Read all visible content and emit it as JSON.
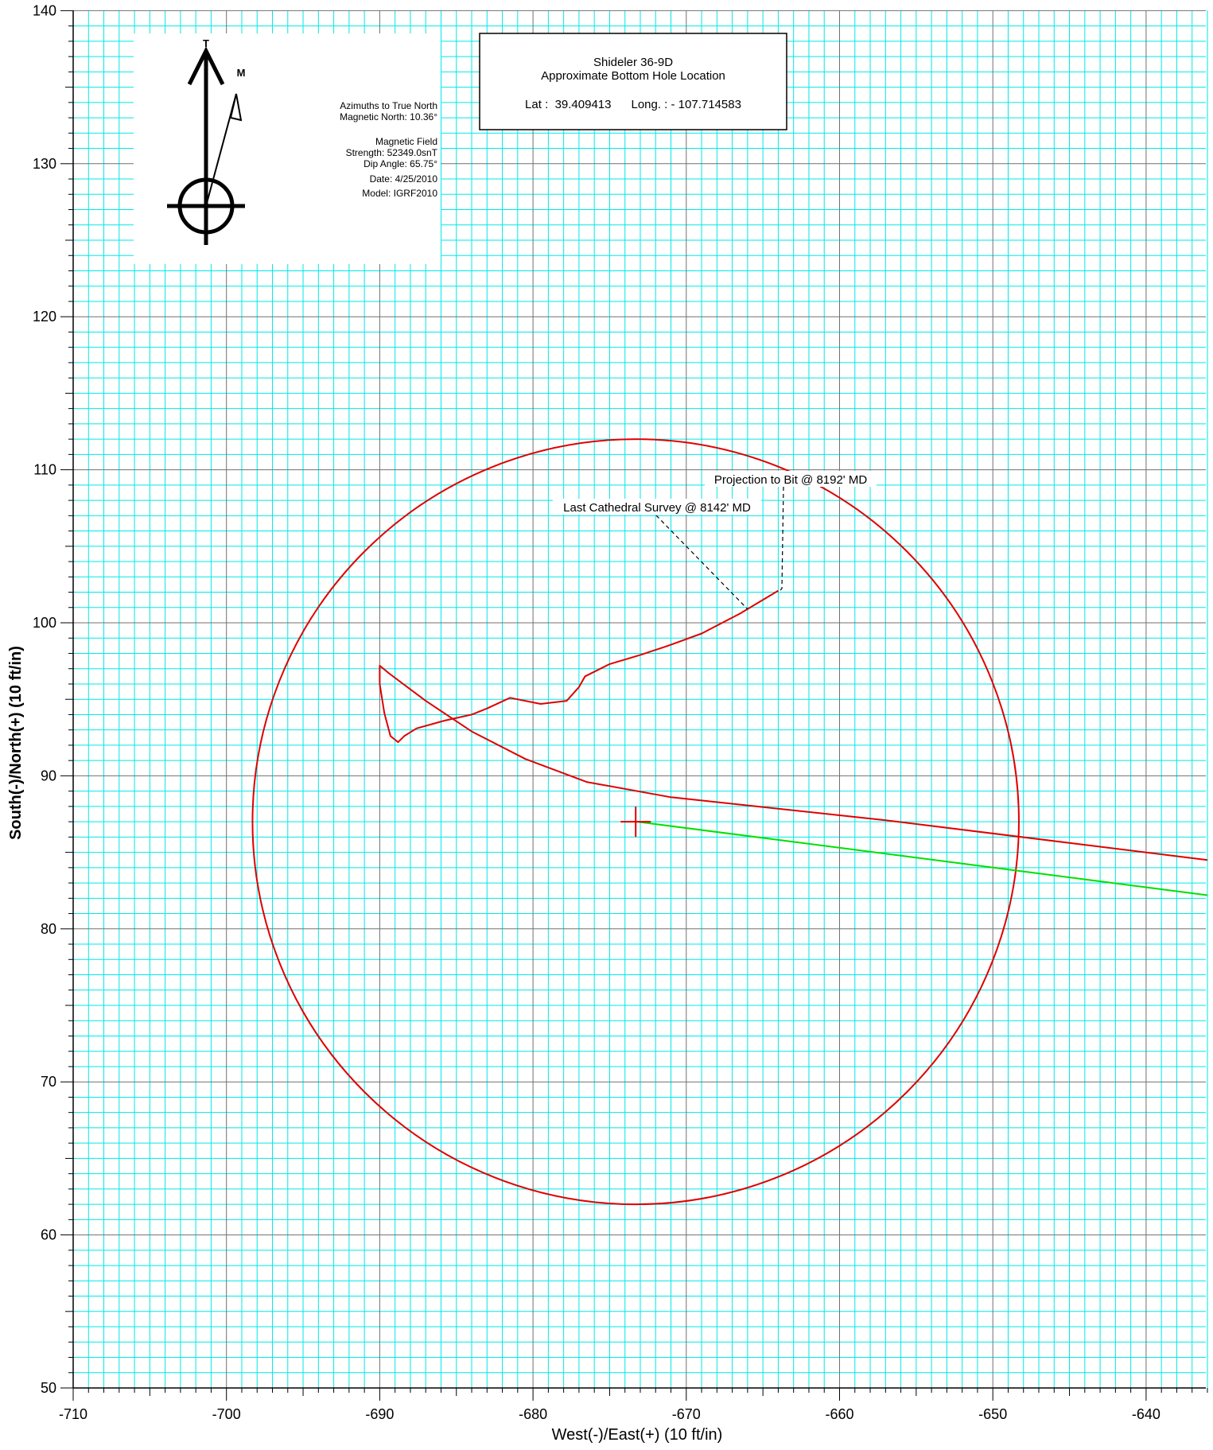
{
  "chart_data": {
    "type": "line",
    "xlabel": "West(-)/East(+) (10 ft/in)",
    "ylabel": "South(-)/North(+) (10 ft/in)",
    "xlim": [
      -710,
      -636
    ],
    "ylim": [
      50,
      140
    ],
    "x_ticks": [
      -710,
      -700,
      -690,
      -680,
      -670,
      -660,
      -650,
      -640
    ],
    "y_ticks": [
      50,
      60,
      70,
      80,
      90,
      100,
      110,
      120,
      130,
      140
    ],
    "grid": true,
    "series": [
      {
        "color": "#e00000",
        "x": [
          -636,
          -657,
          -671,
          -676.5,
          -680.5,
          -684,
          -687,
          -689.4,
          -690,
          -690,
          -689.7,
          -689.3,
          -688.8,
          -688.4,
          -687.6,
          -685.8,
          -684,
          -683,
          -681.5,
          -679.5,
          -677.8,
          -677,
          -676.6,
          -675,
          -673,
          -671.2,
          -669,
          -666.5,
          -664
        ],
        "y": [
          84.5,
          87.1,
          88.6,
          89.6,
          91.1,
          92.9,
          94.9,
          96.7,
          97.2,
          96,
          94.1,
          92.6,
          92.2,
          92.6,
          93.1,
          93.6,
          94,
          94.4,
          95.1,
          94.7,
          94.9,
          95.8,
          96.5,
          97.3,
          97.9,
          98.5,
          99.3,
          100.6,
          102.1
        ]
      },
      {
        "color": "#00e000",
        "x": [
          -673.2,
          -636
        ],
        "y": [
          87,
          82.2
        ]
      }
    ],
    "annotations": [
      {
        "text": "Projection to Bit @ 8192' MD"
      },
      {
        "text": "Last Cathedral Survey @ 8142' MD"
      }
    ],
    "target_circle": {
      "center_x": -673.3,
      "center_y": 87.0,
      "radius": 25.0,
      "color": "#e00000"
    },
    "target_marker": {
      "x": -673.3,
      "y": 87.0,
      "color": "#e00000"
    }
  },
  "legend_box": {
    "line1": "Azimuths to True North",
    "line2": "Magnetic North: 10.36°",
    "line3": "Magnetic Field",
    "line4": "Strength: 52349.0snT",
    "line5": "Dip Angle: 65.75°",
    "line6": "Date: 4/25/2010",
    "line7": "Model: IGRF2010",
    "true_north_label": "T",
    "magnetic_north_label": "M"
  },
  "info_box": {
    "title": "Shideler 36-9D",
    "subtitle": "Approximate Bottom Hole Location",
    "lat_line": "Lat :  39.409413      Long. : - 107.714583"
  },
  "colors": {
    "grid_minor": "#00e8e8",
    "grid_major": "#707070",
    "well_path": "#e00000",
    "plan_line": "#00e000"
  },
  "icons": {
    "north_arrow": "north-arrow-icon",
    "target": "target-crosshair-icon"
  }
}
